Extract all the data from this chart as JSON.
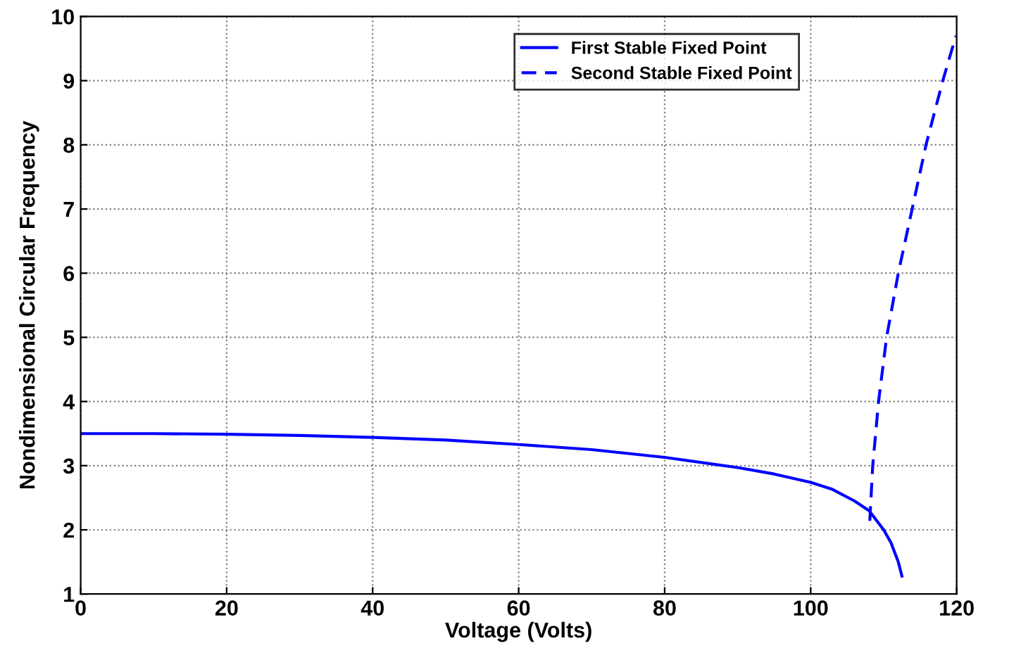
{
  "chart_data": {
    "type": "line",
    "xlabel": "Voltage (Volts)",
    "ylabel": "Nondimensional Circular Frequency",
    "xlim": [
      0,
      120
    ],
    "ylim": [
      1,
      10
    ],
    "xticks": [
      0,
      20,
      40,
      60,
      80,
      100,
      120
    ],
    "yticks": [
      1,
      2,
      3,
      4,
      5,
      6,
      7,
      8,
      9,
      10
    ],
    "grid": true,
    "legend": "top right",
    "series": [
      {
        "name": "First Stable Fixed Point",
        "color": "#0000ff",
        "line_style": "solid",
        "x": [
          0,
          10,
          20,
          30,
          40,
          50,
          60,
          70,
          80,
          90,
          95,
          100,
          103,
          106,
          108,
          110,
          111,
          112,
          112.5
        ],
        "values": [
          3.5,
          3.5,
          3.49,
          3.47,
          3.44,
          3.4,
          3.33,
          3.25,
          3.13,
          2.97,
          2.87,
          2.74,
          2.63,
          2.45,
          2.3,
          2.0,
          1.8,
          1.5,
          1.28
        ]
      },
      {
        "name": "Second Stable Fixed Point",
        "color": "#0000ff",
        "line_style": "dashed",
        "x": [
          108.1,
          108.5,
          109.3,
          110.4,
          112,
          113.9,
          115.8,
          118.1,
          119.9
        ],
        "values": [
          2.14,
          3,
          4,
          5,
          6,
          7,
          8,
          9,
          9.7
        ]
      }
    ]
  }
}
